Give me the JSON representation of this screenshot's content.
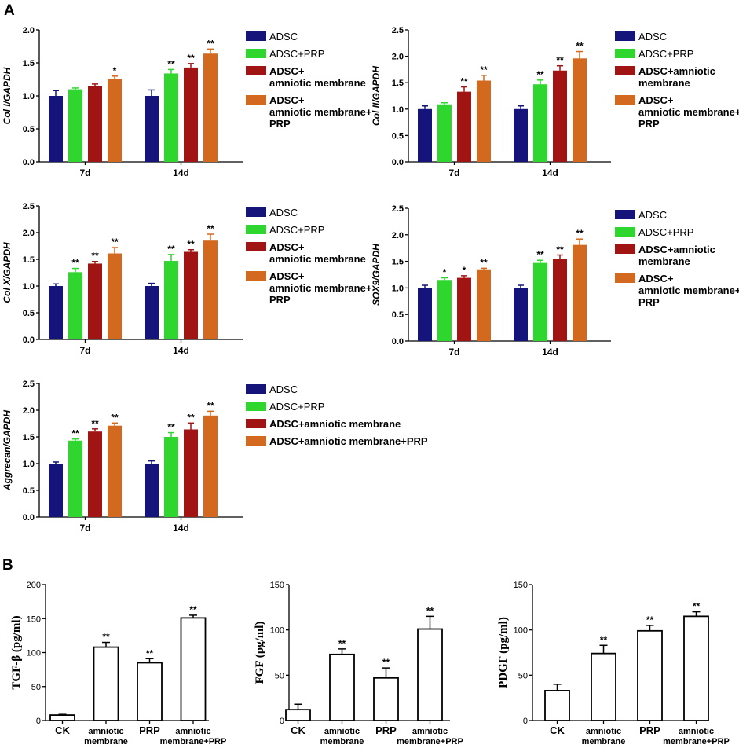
{
  "panel_labels": {
    "a": "A",
    "b": "B"
  },
  "group_colors": [
    "#14147a",
    "#2ed62e",
    "#a01414",
    "#d2691e"
  ],
  "chart_data": [
    {
      "id": "col1",
      "type": "bar",
      "ylabel": "Col I/GAPDH",
      "ylim": [
        0,
        2.0
      ],
      "yticks": [
        "0.0",
        "0.5",
        "1.0",
        "1.5",
        "2.0"
      ],
      "categories": [
        "7d",
        "14d"
      ],
      "series": [
        {
          "name": "ADSC",
          "values": [
            1.0,
            1.0
          ],
          "errors": [
            0.08,
            0.09
          ],
          "sig": [
            "",
            ""
          ]
        },
        {
          "name": "ADSC+PRP",
          "values": [
            1.1,
            1.34
          ],
          "errors": [
            0.02,
            0.06
          ],
          "sig": [
            "",
            "**"
          ]
        },
        {
          "name": "ADSC+amniotic membrane",
          "values": [
            1.15,
            1.43
          ],
          "errors": [
            0.03,
            0.06
          ],
          "sig": [
            "",
            "**"
          ]
        },
        {
          "name": "ADSC+amniotic membrane+PRP",
          "values": [
            1.26,
            1.64
          ],
          "errors": [
            0.04,
            0.07
          ],
          "sig": [
            "*",
            "**"
          ]
        }
      ],
      "legend": [
        "ADSC",
        "ADSC+PRP",
        [
          "ADSC+",
          "amniotic membrane"
        ],
        [
          "ADSC+",
          "amniotic membrane+",
          "PRP"
        ]
      ]
    },
    {
      "id": "col2",
      "type": "bar",
      "ylabel": "Col II/GAPDH",
      "ylim": [
        0,
        2.5
      ],
      "yticks": [
        "0.0",
        "0.5",
        "1.0",
        "1.5",
        "2.0",
        "2.5"
      ],
      "categories": [
        "7d",
        "14d"
      ],
      "series": [
        {
          "name": "ADSC",
          "values": [
            1.0,
            1.0
          ],
          "errors": [
            0.06,
            0.06
          ],
          "sig": [
            "",
            ""
          ]
        },
        {
          "name": "ADSC+PRP",
          "values": [
            1.09,
            1.47
          ],
          "errors": [
            0.03,
            0.08
          ],
          "sig": [
            "",
            "**"
          ]
        },
        {
          "name": "ADSC+amniotic membrane",
          "values": [
            1.33,
            1.73
          ],
          "errors": [
            0.09,
            0.09
          ],
          "sig": [
            "**",
            "**"
          ]
        },
        {
          "name": "ADSC+amniotic membrane+PRP",
          "values": [
            1.54,
            1.96
          ],
          "errors": [
            0.1,
            0.13
          ],
          "sig": [
            "**",
            "**"
          ]
        }
      ],
      "legend": [
        "ADSC",
        "ADSC+PRP",
        [
          "ADSC+amniotic",
          "membrane"
        ],
        [
          "ADSC+",
          "amniotic membrane+",
          "PRP"
        ]
      ]
    },
    {
      "id": "colx",
      "type": "bar",
      "ylabel": "Col X/GAPDH",
      "ylim": [
        0,
        2.5
      ],
      "yticks": [
        "0.0",
        "0.5",
        "1.0",
        "1.5",
        "2.0",
        "2.5"
      ],
      "categories": [
        "7d",
        "14d"
      ],
      "series": [
        {
          "name": "ADSC",
          "values": [
            1.0,
            1.0
          ],
          "errors": [
            0.04,
            0.05
          ],
          "sig": [
            "",
            ""
          ]
        },
        {
          "name": "ADSC+PRP",
          "values": [
            1.26,
            1.47
          ],
          "errors": [
            0.07,
            0.12
          ],
          "sig": [
            "**",
            "**"
          ]
        },
        {
          "name": "ADSC+amniotic membrane",
          "values": [
            1.42,
            1.64
          ],
          "errors": [
            0.04,
            0.04
          ],
          "sig": [
            "**",
            "**"
          ]
        },
        {
          "name": "ADSC+amniotic membrane+PRP",
          "values": [
            1.61,
            1.85
          ],
          "errors": [
            0.11,
            0.12
          ],
          "sig": [
            "**",
            "**"
          ]
        }
      ],
      "legend": [
        "ADSC",
        "ADSC+PRP",
        [
          "ADSC+",
          "amniotic membrane"
        ],
        [
          "ADSC+",
          "amniotic membrane+",
          "PRP"
        ]
      ]
    },
    {
      "id": "sox9",
      "type": "bar",
      "ylabel": "SOX9/GAPDH",
      "ylim": [
        0,
        2.5
      ],
      "yticks": [
        "0.0",
        "0.5",
        "1.0",
        "1.5",
        "2.0",
        "2.5"
      ],
      "categories": [
        "7d",
        "14d"
      ],
      "series": [
        {
          "name": "ADSC",
          "values": [
            1.0,
            1.0
          ],
          "errors": [
            0.05,
            0.05
          ],
          "sig": [
            "",
            ""
          ]
        },
        {
          "name": "ADSC+PRP",
          "values": [
            1.15,
            1.47
          ],
          "errors": [
            0.04,
            0.05
          ],
          "sig": [
            "*",
            "**"
          ]
        },
        {
          "name": "ADSC+amniotic membrane",
          "values": [
            1.19,
            1.55
          ],
          "errors": [
            0.04,
            0.07
          ],
          "sig": [
            "*",
            "**"
          ]
        },
        {
          "name": "ADSC+amniotic membrane+PRP",
          "values": [
            1.35,
            1.81
          ],
          "errors": [
            0.02,
            0.11
          ],
          "sig": [
            "**",
            "**"
          ]
        }
      ],
      "legend": [
        "ADSC",
        "ADSC+PRP",
        [
          "ADSC+amniotic",
          "membrane"
        ],
        [
          "ADSC+",
          "amniotic membrane+",
          "PRP"
        ]
      ]
    },
    {
      "id": "aggrecan",
      "type": "bar",
      "ylabel": "Aggrecan/GAPDH",
      "ylim": [
        0,
        2.5
      ],
      "yticks": [
        "0.0",
        "0.5",
        "1.0",
        "1.5",
        "2.0",
        "2.5"
      ],
      "categories": [
        "7d",
        "14d"
      ],
      "series": [
        {
          "name": "ADSC",
          "values": [
            1.0,
            1.0
          ],
          "errors": [
            0.03,
            0.05
          ],
          "sig": [
            "",
            ""
          ]
        },
        {
          "name": "ADSC+PRP",
          "values": [
            1.43,
            1.5
          ],
          "errors": [
            0.03,
            0.08
          ],
          "sig": [
            "**",
            "**"
          ]
        },
        {
          "name": "ADSC+amniotic membrane",
          "values": [
            1.6,
            1.64
          ],
          "errors": [
            0.05,
            0.12
          ],
          "sig": [
            "**",
            "**"
          ]
        },
        {
          "name": "ADSC+amniotic membrane+PRP",
          "values": [
            1.71,
            1.9
          ],
          "errors": [
            0.05,
            0.08
          ],
          "sig": [
            "**",
            "**"
          ]
        }
      ],
      "legend": [
        "ADSC",
        "ADSC+PRP",
        "ADSC+amniotic membrane",
        "ADSC+amniotic membrane+PRP"
      ]
    },
    {
      "id": "tgf",
      "type": "bar",
      "ylabel": "TGF-β  (pg/ml)",
      "ylim": [
        0,
        200
      ],
      "yticks": [
        "0",
        "50",
        "100",
        "150",
        "200"
      ],
      "categories": [
        "CK",
        [
          "amniotic",
          "membrane"
        ],
        "PRP",
        [
          "amniotic",
          "membrane+PRP"
        ]
      ],
      "values": [
        8,
        108,
        85,
        151
      ],
      "errors": [
        1,
        7,
        6,
        4
      ],
      "sig": [
        "",
        "**",
        "**",
        "**"
      ]
    },
    {
      "id": "fgf",
      "type": "bar",
      "ylabel": "FGF  (pg/ml)",
      "ylim": [
        0,
        150
      ],
      "yticks": [
        "0",
        "50",
        "100",
        "150"
      ],
      "categories": [
        "CK",
        [
          "amniotic",
          "membrane"
        ],
        "PRP",
        [
          "amniotic",
          "membrane+PRP"
        ]
      ],
      "values": [
        12,
        73,
        47,
        101
      ],
      "errors": [
        6,
        6,
        11,
        14
      ],
      "sig": [
        "",
        "**",
        "**",
        "**"
      ]
    },
    {
      "id": "pdgf",
      "type": "bar",
      "ylabel": "PDGF  (pg/ml)",
      "ylim": [
        0,
        150
      ],
      "yticks": [
        "0",
        "50",
        "100",
        "150"
      ],
      "categories": [
        "CK",
        [
          "amniotic",
          "membrane"
        ],
        "PRP",
        [
          "amniotic",
          "membrane+PRP"
        ]
      ],
      "values": [
        33,
        74,
        99,
        115
      ],
      "errors": [
        7,
        9,
        6,
        5
      ],
      "sig": [
        "",
        "**",
        "**",
        "**"
      ]
    }
  ]
}
